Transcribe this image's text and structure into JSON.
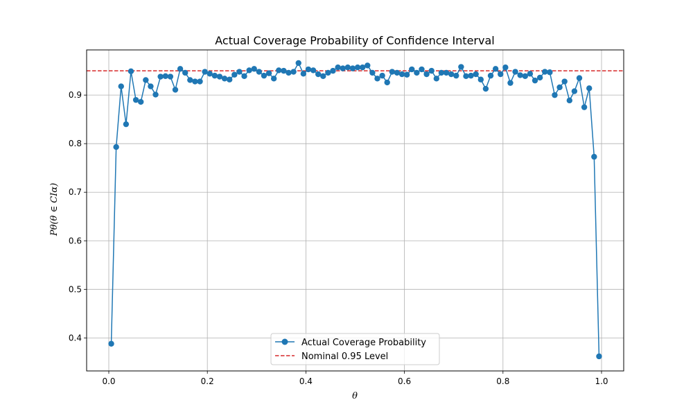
{
  "chart_data": {
    "type": "line",
    "title": "Actual Coverage Probability of Confidence Interval",
    "xlabel": "θ",
    "ylabel": "Pθ(θ ∈ CIα)",
    "xlim": [
      -0.045,
      1.045
    ],
    "ylim": [
      0.332,
      0.993
    ],
    "xticks": [
      0.0,
      0.2,
      0.4,
      0.6,
      0.8,
      1.0
    ],
    "xtick_labels": [
      "0.0",
      "0.2",
      "0.4",
      "0.6",
      "0.8",
      "1.0"
    ],
    "yticks": [
      0.4,
      0.5,
      0.6,
      0.7,
      0.8,
      0.9
    ],
    "ytick_labels": [
      "0.4",
      "0.5",
      "0.6",
      "0.7",
      "0.8",
      "0.9"
    ],
    "grid": true,
    "legend_position": "lower-center",
    "series": [
      {
        "name": "Actual Coverage Probability",
        "color": "#1f77b4",
        "marker": "circle",
        "line_style": "solid",
        "x": [
          0.005,
          0.015,
          0.025,
          0.035,
          0.045,
          0.055,
          0.065,
          0.075,
          0.085,
          0.095,
          0.105,
          0.115,
          0.125,
          0.135,
          0.145,
          0.155,
          0.165,
          0.175,
          0.185,
          0.195,
          0.205,
          0.215,
          0.225,
          0.235,
          0.245,
          0.255,
          0.265,
          0.275,
          0.285,
          0.295,
          0.305,
          0.315,
          0.325,
          0.335,
          0.345,
          0.355,
          0.365,
          0.375,
          0.385,
          0.395,
          0.405,
          0.415,
          0.425,
          0.435,
          0.445,
          0.455,
          0.465,
          0.475,
          0.485,
          0.495,
          0.505,
          0.515,
          0.525,
          0.535,
          0.545,
          0.555,
          0.565,
          0.575,
          0.585,
          0.595,
          0.605,
          0.615,
          0.625,
          0.635,
          0.645,
          0.655,
          0.665,
          0.675,
          0.685,
          0.695,
          0.705,
          0.715,
          0.725,
          0.735,
          0.745,
          0.755,
          0.765,
          0.775,
          0.785,
          0.795,
          0.805,
          0.815,
          0.825,
          0.835,
          0.845,
          0.855,
          0.865,
          0.875,
          0.885,
          0.895,
          0.905,
          0.915,
          0.925,
          0.935,
          0.945,
          0.955,
          0.965,
          0.975,
          0.985,
          0.995
        ],
        "y": [
          0.388,
          0.793,
          0.918,
          0.84,
          0.949,
          0.89,
          0.886,
          0.931,
          0.918,
          0.901,
          0.938,
          0.939,
          0.938,
          0.911,
          0.954,
          0.946,
          0.931,
          0.928,
          0.928,
          0.948,
          0.944,
          0.94,
          0.938,
          0.934,
          0.932,
          0.942,
          0.948,
          0.939,
          0.951,
          0.954,
          0.948,
          0.94,
          0.945,
          0.934,
          0.951,
          0.95,
          0.946,
          0.948,
          0.966,
          0.944,
          0.953,
          0.951,
          0.943,
          0.939,
          0.946,
          0.95,
          0.957,
          0.955,
          0.957,
          0.955,
          0.957,
          0.957,
          0.961,
          0.946,
          0.934,
          0.94,
          0.926,
          0.948,
          0.946,
          0.943,
          0.942,
          0.953,
          0.946,
          0.953,
          0.943,
          0.95,
          0.934,
          0.946,
          0.946,
          0.943,
          0.94,
          0.958,
          0.939,
          0.94,
          0.943,
          0.932,
          0.913,
          0.94,
          0.954,
          0.943,
          0.957,
          0.925,
          0.948,
          0.941,
          0.939,
          0.944,
          0.93,
          0.936,
          0.948,
          0.947,
          0.9,
          0.916,
          0.928,
          0.889,
          0.908,
          0.935,
          0.875,
          0.914,
          0.773,
          0.362
        ]
      },
      {
        "name": "Nominal 0.95 Level",
        "color": "#d62728",
        "line_style": "dashed",
        "y_constant": 0.95
      }
    ]
  }
}
